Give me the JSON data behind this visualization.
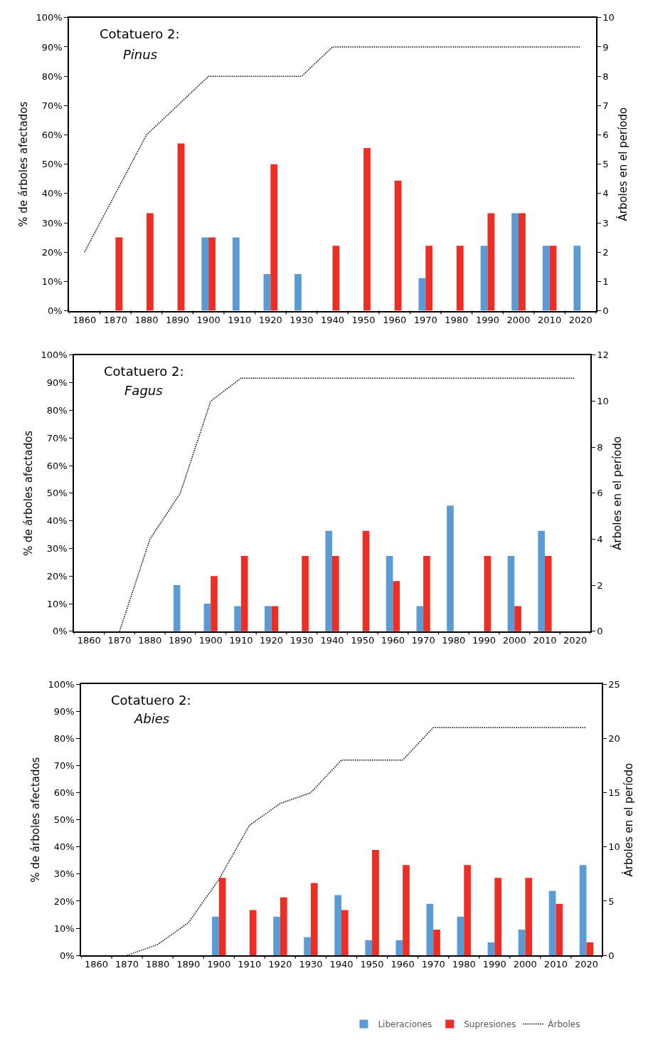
{
  "chart_data": [
    {
      "type": "bar",
      "title": "Cotatuero 2:",
      "subtitle": "Pinus",
      "ylabel": "% de árboles afectados",
      "y2label": "Árboles en el período",
      "categories": [
        "1860",
        "1870",
        "1880",
        "1890",
        "1900",
        "1910",
        "1920",
        "1930",
        "1940",
        "1950",
        "1960",
        "1970",
        "1980",
        "1990",
        "2000",
        "2010",
        "2020"
      ],
      "series": [
        {
          "color": "#5b9bd5",
          "values": [
            null,
            null,
            null,
            null,
            25,
            25,
            12.5,
            12.5,
            null,
            null,
            null,
            11.1,
            null,
            22.2,
            33.3,
            22.2,
            22.2
          ]
        },
        {
          "color": "#ee2e24",
          "values": [
            null,
            25,
            33.3,
            57.1,
            25,
            null,
            50,
            null,
            22.2,
            55.5,
            44.4,
            22.2,
            22.2,
            33.3,
            33.3,
            22.2,
            null
          ]
        },
        {
          "type": "line",
          "axis": "y2",
          "color": "#000000",
          "line_style": "dotted",
          "values": [
            2,
            4,
            6,
            7,
            8,
            8,
            8,
            8,
            9,
            9,
            9,
            9,
            9,
            9,
            9,
            9,
            9
          ]
        }
      ],
      "ylim": [
        0,
        100
      ],
      "yticks": [
        {
          "value": 0,
          "label": "0%"
        },
        {
          "value": 10,
          "label": "10%"
        },
        {
          "value": 20,
          "label": "20%"
        },
        {
          "value": 30,
          "label": "30%"
        },
        {
          "value": 40,
          "label": "40%"
        },
        {
          "value": 50,
          "label": "50%"
        },
        {
          "value": 60,
          "label": "60%"
        },
        {
          "value": 70,
          "label": "70%"
        },
        {
          "value": 80,
          "label": "80%"
        },
        {
          "value": 90,
          "label": "90%"
        },
        {
          "value": 100,
          "label": "100%"
        }
      ],
      "y2lim": [
        0,
        10
      ],
      "y2ticks": [
        0,
        1,
        2,
        3,
        4,
        5,
        6,
        7,
        8,
        9,
        10
      ],
      "grid": false,
      "marker": "none"
    },
    {
      "type": "bar",
      "title": "Cotatuero 2:",
      "subtitle": "Fagus",
      "ylabel": "% de árboles afectados",
      "y2label": "Árboles en el período",
      "categories": [
        "1860",
        "1870",
        "1880",
        "1890",
        "1900",
        "1910",
        "1920",
        "1930",
        "1940",
        "1950",
        "1960",
        "1970",
        "1980",
        "1990",
        "2000",
        "2010",
        "2020"
      ],
      "series": [
        {
          "color": "#5b9bd5",
          "values": [
            null,
            null,
            null,
            16.7,
            10,
            9.1,
            9.1,
            null,
            36.4,
            null,
            27.3,
            9.1,
            45.5,
            null,
            27.3,
            36.4,
            null
          ]
        },
        {
          "color": "#ee2e24",
          "values": [
            null,
            null,
            null,
            null,
            20,
            27.3,
            9.1,
            27.3,
            27.3,
            36.4,
            18.2,
            27.3,
            null,
            27.3,
            9.1,
            27.3,
            null
          ]
        },
        {
          "type": "line",
          "axis": "y2",
          "color": "#000000",
          "line_style": "dotted",
          "values": [
            null,
            0,
            4,
            6,
            10,
            11,
            11,
            11,
            11,
            11,
            11,
            11,
            11,
            11,
            11,
            11,
            11
          ]
        }
      ],
      "ylim": [
        0,
        100
      ],
      "yticks": [
        {
          "value": 0,
          "label": "0%"
        },
        {
          "value": 10,
          "label": "10%"
        },
        {
          "value": 20,
          "label": "20%"
        },
        {
          "value": 30,
          "label": "30%"
        },
        {
          "value": 40,
          "label": "40%"
        },
        {
          "value": 50,
          "label": "50%"
        },
        {
          "value": 60,
          "label": "60%"
        },
        {
          "value": 70,
          "label": "70%"
        },
        {
          "value": 80,
          "label": "80%"
        },
        {
          "value": 90,
          "label": "90%"
        },
        {
          "value": 100,
          "label": "100%"
        }
      ],
      "y2lim": [
        0,
        12
      ],
      "y2ticks": [
        0,
        2,
        4,
        6,
        8,
        10,
        12
      ],
      "grid": false,
      "marker": "none"
    },
    {
      "type": "bar",
      "title": "Cotatuero 2:",
      "subtitle": "Abies",
      "ylabel": "% de árboles afectados",
      "y2label": "Árboles en el período",
      "categories": [
        "1860",
        "1870",
        "1880",
        "1890",
        "1900",
        "1910",
        "1920",
        "1930",
        "1940",
        "1950",
        "1960",
        "1970",
        "1980",
        "1990",
        "2000",
        "2010",
        "2020"
      ],
      "series": [
        {
          "name": "Liberaciones",
          "color": "#5b9bd5",
          "values": [
            null,
            null,
            null,
            null,
            14.3,
            null,
            14.3,
            6.7,
            22.2,
            5.6,
            5.6,
            19.0,
            14.3,
            4.8,
            9.5,
            23.8,
            33.3
          ]
        },
        {
          "name": "Supresiones",
          "color": "#ee2e24",
          "values": [
            null,
            null,
            null,
            null,
            28.6,
            16.7,
            21.4,
            26.7,
            16.7,
            38.9,
            33.3,
            9.5,
            33.3,
            28.6,
            28.6,
            19.0,
            4.8
          ]
        },
        {
          "name": "Árboles",
          "type": "line",
          "axis": "y2",
          "color": "#000000",
          "line_style": "dotted",
          "values": [
            null,
            0,
            1,
            3,
            7,
            12,
            14,
            15,
            18,
            18,
            18,
            21,
            21,
            21,
            21,
            21,
            21
          ]
        }
      ],
      "ylim": [
        0,
        100
      ],
      "yticks": [
        {
          "value": 0,
          "label": "0%"
        },
        {
          "value": 10,
          "label": "10%"
        },
        {
          "value": 20,
          "label": "20%"
        },
        {
          "value": 30,
          "label": "30%"
        },
        {
          "value": 40,
          "label": "40%"
        },
        {
          "value": 50,
          "label": "50%"
        },
        {
          "value": 60,
          "label": "60%"
        },
        {
          "value": 70,
          "label": "70%"
        },
        {
          "value": 80,
          "label": "80%"
        },
        {
          "value": 90,
          "label": "90%"
        },
        {
          "value": 100,
          "label": "100%"
        }
      ],
      "y2lim": [
        0,
        25
      ],
      "y2ticks": [
        0,
        5,
        10,
        15,
        20,
        25
      ],
      "grid": false,
      "marker": "none",
      "legend": "bottom"
    }
  ]
}
